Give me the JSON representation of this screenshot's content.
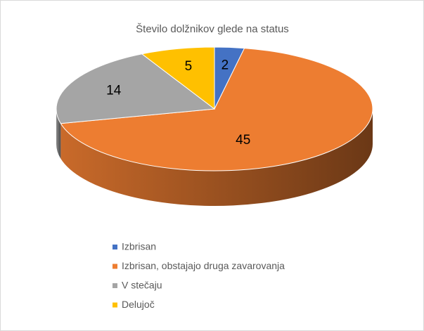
{
  "chart_data": {
    "type": "pie3d",
    "title": "Število dolžnikov glede na status",
    "categories": [
      "Izbrisan",
      "Izbrisan, obstajajo druga zavarovanja",
      "V stečaju",
      "Delujoč"
    ],
    "values": [
      2,
      45,
      14,
      5
    ],
    "colors": [
      "#4472c4",
      "#ed7d31",
      "#a5a5a5",
      "#ffc000"
    ],
    "legend": "bottom"
  }
}
